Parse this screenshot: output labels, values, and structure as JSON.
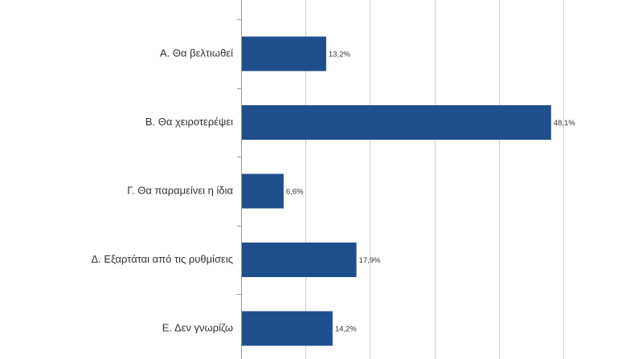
{
  "chart_data": {
    "type": "bar",
    "orientation": "horizontal",
    "categories": [
      "Α. Θα βελτιωθεί",
      "Β. Θα χειροτερέψει",
      "Γ. Θα παραμείνει η ίδια",
      "Δ. Εξαρτάται από τις ρυθμίσεις",
      "Ε. Δεν γνωρίζω"
    ],
    "values": [
      13.2,
      48.1,
      6.6,
      17.9,
      14.2
    ],
    "data_labels": [
      "13,2%",
      "48,1%",
      "6,6%",
      "17,9%",
      "14,2%"
    ],
    "xlim": [
      0,
      60
    ],
    "gridlines_every": 10,
    "grid": true,
    "tick_labels_visible": false,
    "title": "",
    "xlabel": "",
    "ylabel": "",
    "bar_color": "#1f4e8c",
    "grid_color": "#cfcfcf",
    "axis_color": "#9a9a9a",
    "text_color": "#333333"
  }
}
